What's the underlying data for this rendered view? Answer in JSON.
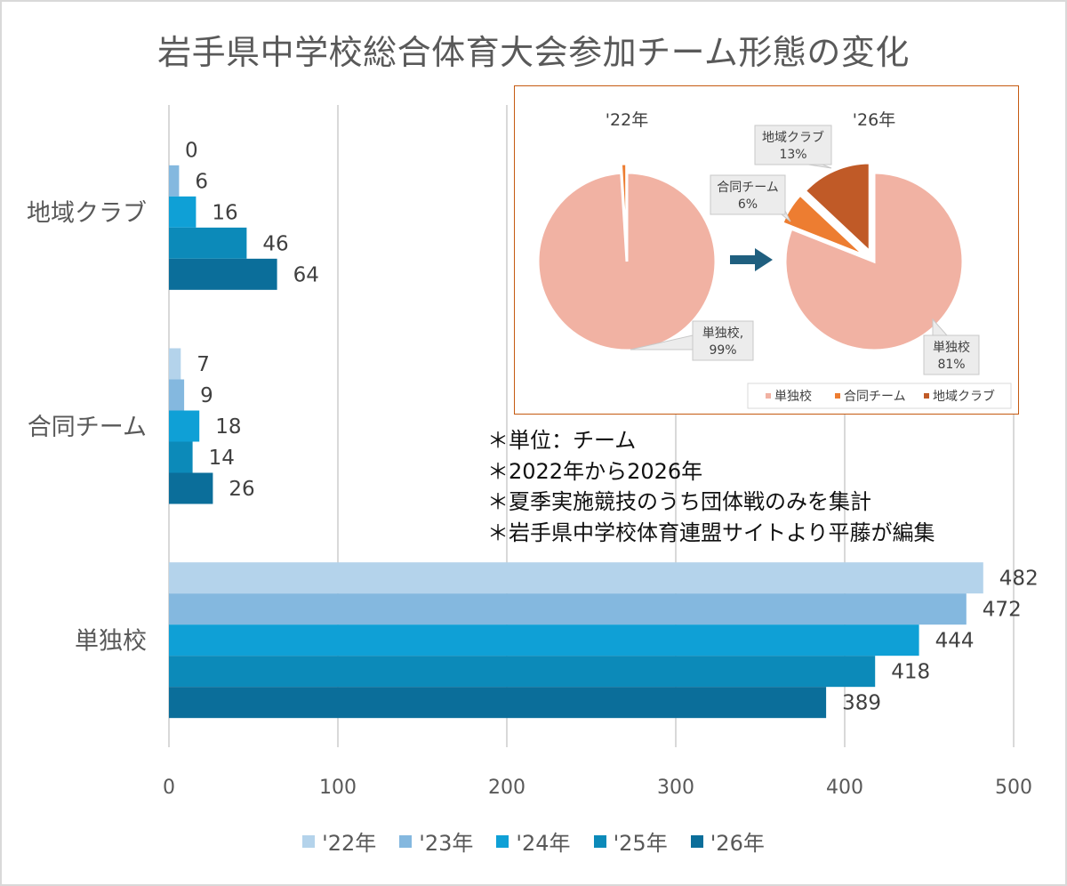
{
  "title": "岩手県中学校総合体育大会参加チーム形態の変化",
  "colors": {
    "series": [
      "#b4d3eb",
      "#84b8df",
      "#0fa0d6",
      "#0c8ab9",
      "#0b6e9a"
    ],
    "pie": [
      "#f1b2a3",
      "#ed7d31",
      "#c05a27"
    ],
    "grid": "#d9d9d9",
    "arrow": "#1f5f7f",
    "inset_border": "#c55a11"
  },
  "chart_data": [
    {
      "type": "bar",
      "orientation": "horizontal",
      "categories": [
        "地域クラブ",
        "合同チーム",
        "単独校"
      ],
      "series": [
        {
          "name": "'22年",
          "values": [
            0,
            7,
            482
          ]
        },
        {
          "name": "'23年",
          "values": [
            6,
            9,
            472
          ]
        },
        {
          "name": "'24年",
          "values": [
            16,
            18,
            444
          ]
        },
        {
          "name": "'25年",
          "values": [
            46,
            14,
            418
          ]
        },
        {
          "name": "'26年",
          "values": [
            64,
            26,
            389
          ]
        }
      ],
      "xlim": [
        0,
        500
      ],
      "xticks": [
        "0",
        "100",
        "200",
        "300",
        "400",
        "500"
      ],
      "grid": true,
      "legend": "bottom"
    },
    {
      "type": "pie",
      "title": "'22年",
      "slices": [
        {
          "name": "単独校",
          "value": 99,
          "label": "単独校,\n99%"
        },
        {
          "name": "合同チーム",
          "value": 1
        },
        {
          "name": "地域クラブ",
          "value": 0
        }
      ]
    },
    {
      "type": "pie",
      "title": "'26年",
      "slices": [
        {
          "name": "単独校",
          "value": 81,
          "label": "単独校\n81%"
        },
        {
          "name": "合同チーム",
          "value": 6,
          "label": "合同チーム\n6%"
        },
        {
          "name": "地域クラブ",
          "value": 13,
          "label": "地域クラブ\n13%"
        }
      ],
      "legend": [
        "単独校",
        "合同チーム",
        "地域クラブ"
      ]
    }
  ],
  "notes": [
    "＊単位：チーム",
    "＊2022年から2026年",
    "＊夏季実施競技のうち団体戦のみを集計",
    "＊岩手県中学校体育連盟サイトより平藤が編集"
  ]
}
